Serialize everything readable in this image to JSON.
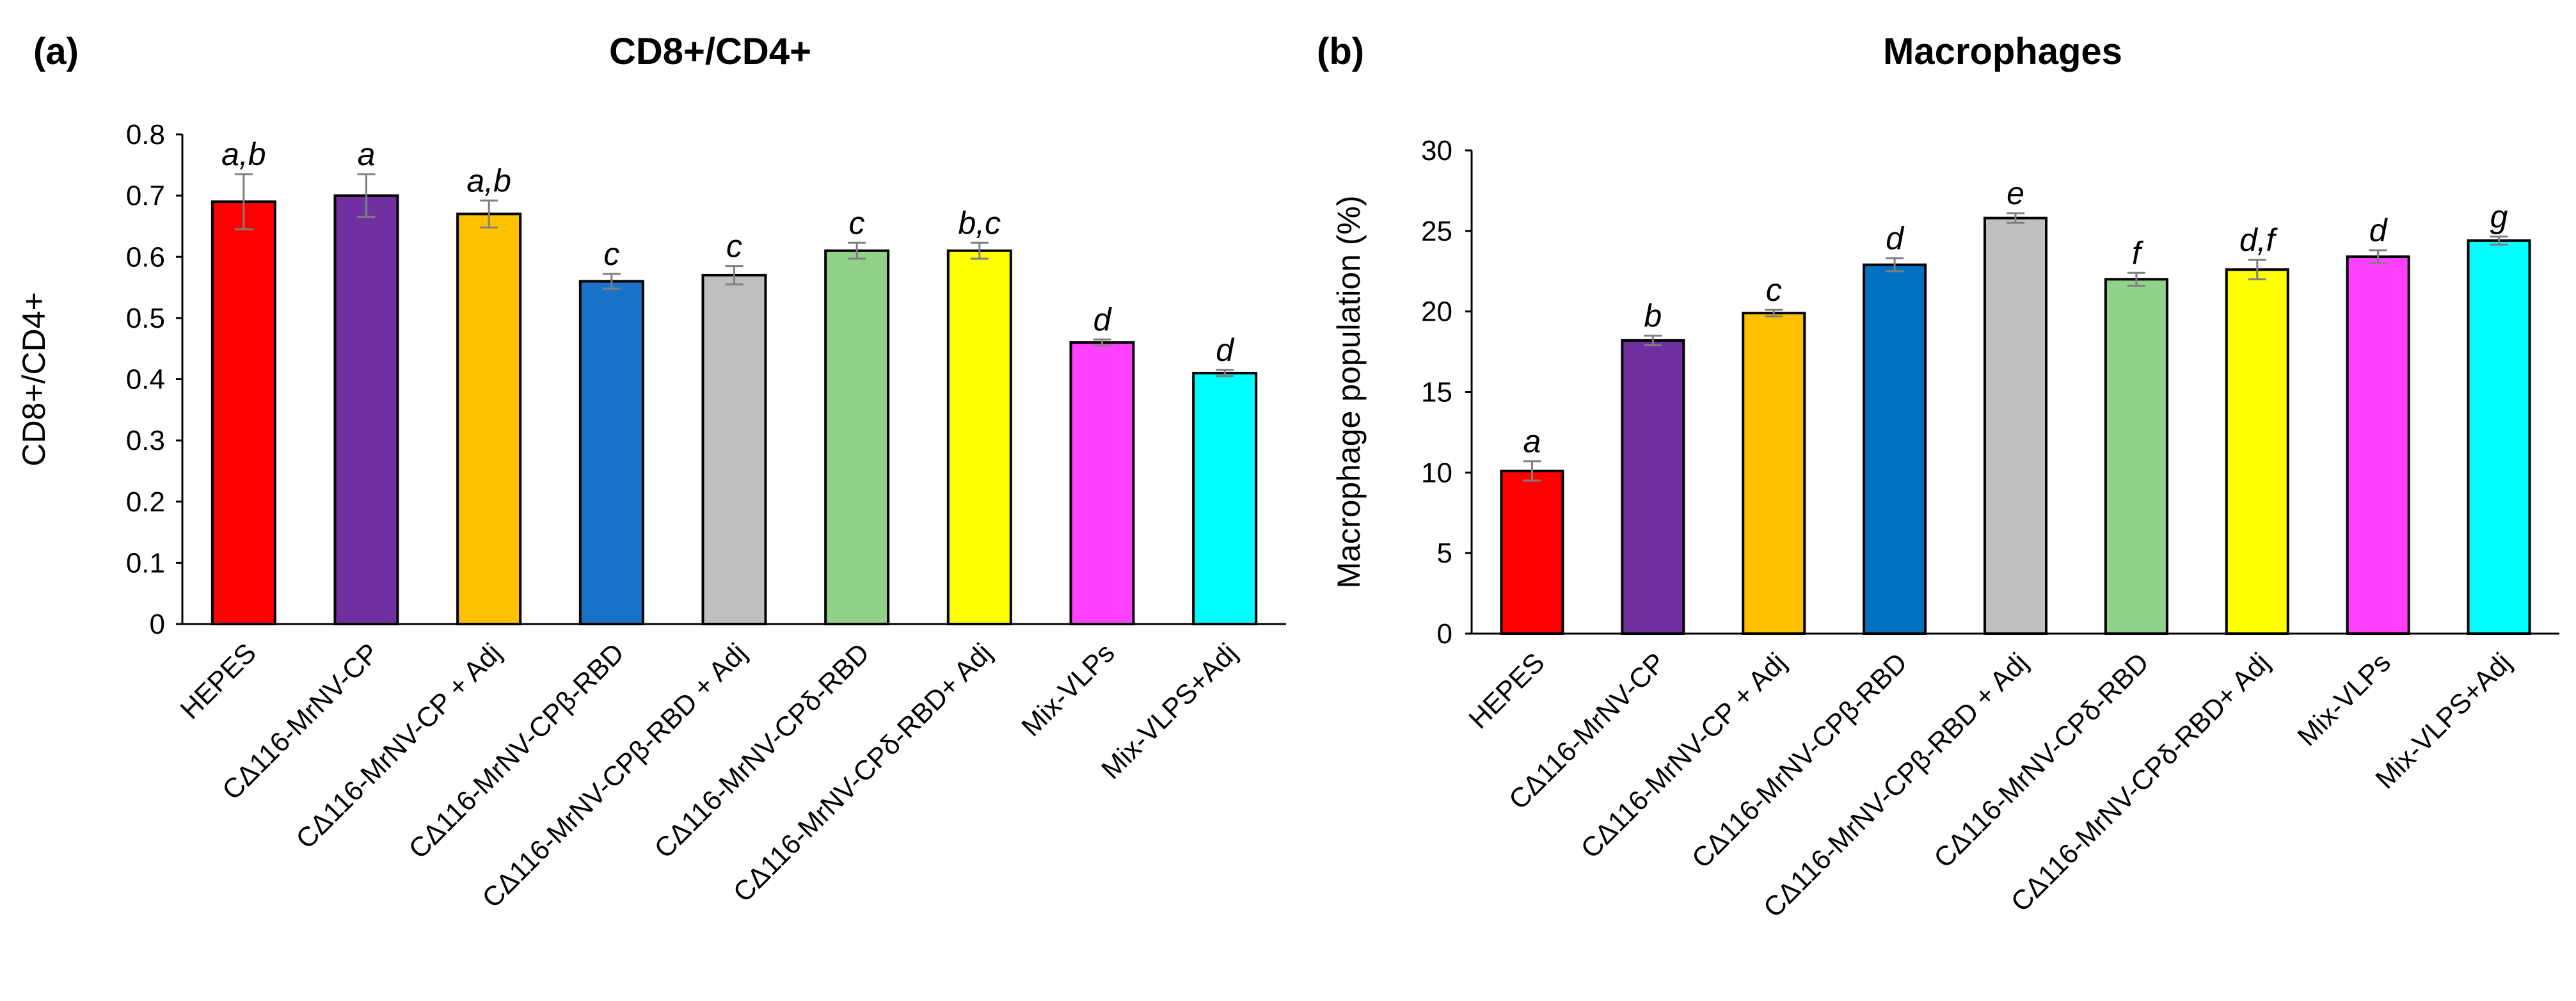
{
  "chart_data": [
    {
      "type": "bar",
      "panel": "(a)",
      "title": "CD8+/CD4+",
      "xlabel": "",
      "ylabel": "CD8+/CD4+",
      "ylim": [
        0,
        0.8
      ],
      "yticks": [
        "0",
        "0.1",
        "0.2",
        "0.3",
        "0.4",
        "0.5",
        "0.6",
        "0.7",
        "0.8"
      ],
      "grid": false,
      "categories": [
        "HEPES",
        "CΔ116-MrNV-CP",
        "CΔ116-MrNV-CP + Adj",
        "CΔ116-MrNV-CPβ-RBD",
        "CΔ116-MrNV-CPβ-RBD + Adj",
        "CΔ116-MrNV-CPδ-RBD",
        "CΔ116-MrNV-CPδ-RBD+ Adj",
        "Mix-VLPs",
        "Mix-VLPS+Adj"
      ],
      "values": [
        0.69,
        0.7,
        0.67,
        0.56,
        0.57,
        0.61,
        0.61,
        0.46,
        0.41
      ],
      "errors": [
        0.045,
        0.035,
        0.022,
        0.012,
        0.015,
        0.013,
        0.013,
        0.005,
        0.005
      ],
      "labels": [
        "a,b",
        "a",
        "a,b",
        "c",
        "c",
        "c",
        "b,c",
        "d",
        "d"
      ],
      "colors": [
        "#ff0000",
        "#7030a0",
        "#ffc000",
        "#1a73c8",
        "#bfbfbf",
        "#92d18a",
        "#ffff00",
        "#ff40ff",
        "#00ffff"
      ]
    },
    {
      "type": "bar",
      "panel": "(b)",
      "title": "Macrophages",
      "xlabel": "",
      "ylabel": "Macrophage population (%)",
      "ylim": [
        0,
        30
      ],
      "yticks": [
        "0",
        "5",
        "10",
        "15",
        "20",
        "25",
        "30"
      ],
      "grid": false,
      "categories": [
        "HEPES",
        "CΔ116-MrNV-CP",
        "CΔ116-MrNV-CP + Adj",
        "CΔ116-MrNV-CPβ-RBD",
        "CΔ116-MrNV-CPβ-RBD + Adj",
        "CΔ116-MrNV-CPδ-RBD",
        "CΔ116-MrNV-CPδ-RBD+ Adj",
        "Mix-VLPs",
        "Mix-VLPS+Adj"
      ],
      "values": [
        10.1,
        18.2,
        19.9,
        22.9,
        25.8,
        22.0,
        22.6,
        23.4,
        24.4
      ],
      "errors": [
        0.6,
        0.3,
        0.2,
        0.4,
        0.3,
        0.4,
        0.6,
        0.4,
        0.25
      ],
      "labels": [
        "a",
        "b",
        "c",
        "d",
        "e",
        "f",
        "d,f",
        "d",
        "g"
      ],
      "colors": [
        "#ff0000",
        "#7030a0",
        "#ffc000",
        "#0070c0",
        "#bfbfbf",
        "#92d18a",
        "#ffff00",
        "#ff40ff",
        "#00ffff"
      ]
    }
  ]
}
